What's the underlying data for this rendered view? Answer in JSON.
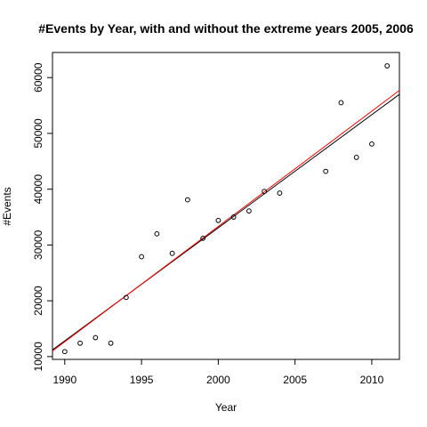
{
  "chart_data": {
    "type": "scatter",
    "title": "#Events by Year, with and without the extreme years 2005, 2006",
    "xlabel": "Year",
    "ylabel": "#Events",
    "xlim": [
      1989.2,
      2011.8
    ],
    "ylim": [
      9500,
      64500
    ],
    "x_ticks": [
      1990,
      1995,
      2000,
      2005,
      2010
    ],
    "y_ticks": [
      10000,
      20000,
      30000,
      40000,
      50000,
      60000
    ],
    "grid": false,
    "points": [
      {
        "x": 1990,
        "y": 10900
      },
      {
        "x": 1991,
        "y": 12400
      },
      {
        "x": 1992,
        "y": 13400
      },
      {
        "x": 1993,
        "y": 12400
      },
      {
        "x": 1994,
        "y": 20600
      },
      {
        "x": 1995,
        "y": 27900
      },
      {
        "x": 1996,
        "y": 32000
      },
      {
        "x": 1997,
        "y": 28500
      },
      {
        "x": 1998,
        "y": 38100
      },
      {
        "x": 1999,
        "y": 31200
      },
      {
        "x": 2000,
        "y": 34400
      },
      {
        "x": 2001,
        "y": 35000
      },
      {
        "x": 2002,
        "y": 36100
      },
      {
        "x": 2003,
        "y": 39600
      },
      {
        "x": 2004,
        "y": 39300
      },
      {
        "x": 2007,
        "y": 43200
      },
      {
        "x": 2008,
        "y": 55500
      },
      {
        "x": 2009,
        "y": 45700
      },
      {
        "x": 2010,
        "y": 48100
      },
      {
        "x": 2011,
        "y": 62100
      }
    ],
    "fit_lines": [
      {
        "color": "#000000",
        "x": [
          1989.2,
          2011.8
        ],
        "y": [
          11200,
          57000
        ]
      },
      {
        "color": "#ff0000",
        "x": [
          1989.2,
          2011.8
        ],
        "y": [
          11000,
          57700
        ]
      }
    ]
  }
}
